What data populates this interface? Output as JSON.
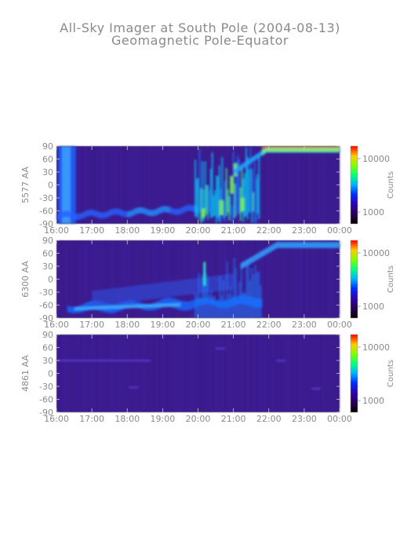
{
  "title": "All-Sky Imager at South Pole (2004-08-13)",
  "subtitle": "Geomagnetic Pole-Equator",
  "chart_data": [
    {
      "type": "heatmap",
      "ylabel": "5577 AA",
      "colorbar_label": "Counts",
      "colorbar_ticks": [
        "10000",
        "1000"
      ],
      "x_ticks": [
        "16:00",
        "17:00",
        "18:00",
        "19:00",
        "20:00",
        "21:00",
        "22:00",
        "23:00",
        "00:00"
      ],
      "y_ticks": [
        "90",
        "60",
        "30",
        "0",
        "-30",
        "-60",
        "-90"
      ],
      "xlim": [
        16,
        24
      ],
      "ylim": [
        -90,
        90
      ]
    },
    {
      "type": "heatmap",
      "ylabel": "6300 AA",
      "colorbar_label": "Counts",
      "colorbar_ticks": [
        "10000",
        "1000"
      ],
      "x_ticks": [
        "16:00",
        "17:00",
        "18:00",
        "19:00",
        "20:00",
        "21:00",
        "22:00",
        "23:00",
        "00:00"
      ],
      "y_ticks": [
        "90",
        "60",
        "30",
        "0",
        "-30",
        "-60",
        "-90"
      ],
      "xlim": [
        16,
        24
      ],
      "ylim": [
        -90,
        90
      ]
    },
    {
      "type": "heatmap",
      "ylabel": "4861 AA",
      "colorbar_label": "Counts",
      "colorbar_ticks": [
        "10000",
        "1000"
      ],
      "x_ticks": [
        "16:00",
        "17:00",
        "18:00",
        "19:00",
        "20:00",
        "21:00",
        "22:00",
        "23:00",
        "00:00"
      ],
      "y_ticks": [
        "90",
        "60",
        "30",
        "0",
        "-30",
        "-60",
        "-90"
      ],
      "xlim": [
        16,
        24
      ],
      "ylim": [
        -90,
        90
      ]
    }
  ]
}
